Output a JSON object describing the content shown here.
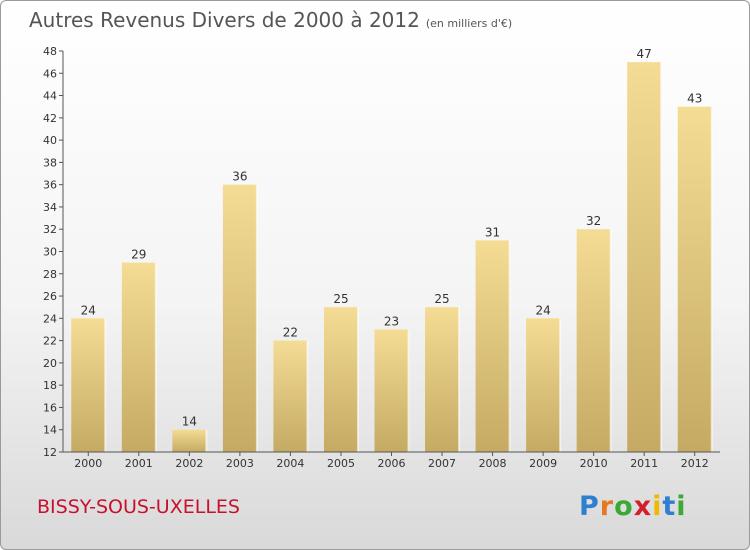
{
  "title": "Autres Revenus Divers de 2000 à 2012",
  "subtitle": "(en milliers d'€)",
  "place": "BISSY-SOUS-UXELLES",
  "logo": {
    "text": "Proxiti",
    "letter_colors": [
      "#2f7fd0",
      "#e87722",
      "#3aa935",
      "#d11f2b",
      "#f0b800",
      "#2f7fd0",
      "#3aa935"
    ]
  },
  "colors": {
    "bar_top": "#f5dc94",
    "bar_bottom": "#c4aa62",
    "place_text": "#c8102e"
  },
  "chart_data": {
    "type": "bar",
    "categories": [
      "2000",
      "2001",
      "2002",
      "2003",
      "2004",
      "2005",
      "2006",
      "2007",
      "2008",
      "2009",
      "2010",
      "2011",
      "2012"
    ],
    "values": [
      24,
      29,
      14,
      36,
      22,
      25,
      23,
      25,
      31,
      24,
      32,
      47,
      43
    ],
    "ylim": [
      12,
      48
    ],
    "yticks": [
      12,
      14,
      16,
      18,
      20,
      22,
      24,
      26,
      28,
      30,
      32,
      34,
      36,
      38,
      40,
      42,
      44,
      46,
      48
    ],
    "grid": false,
    "legend": "none"
  }
}
